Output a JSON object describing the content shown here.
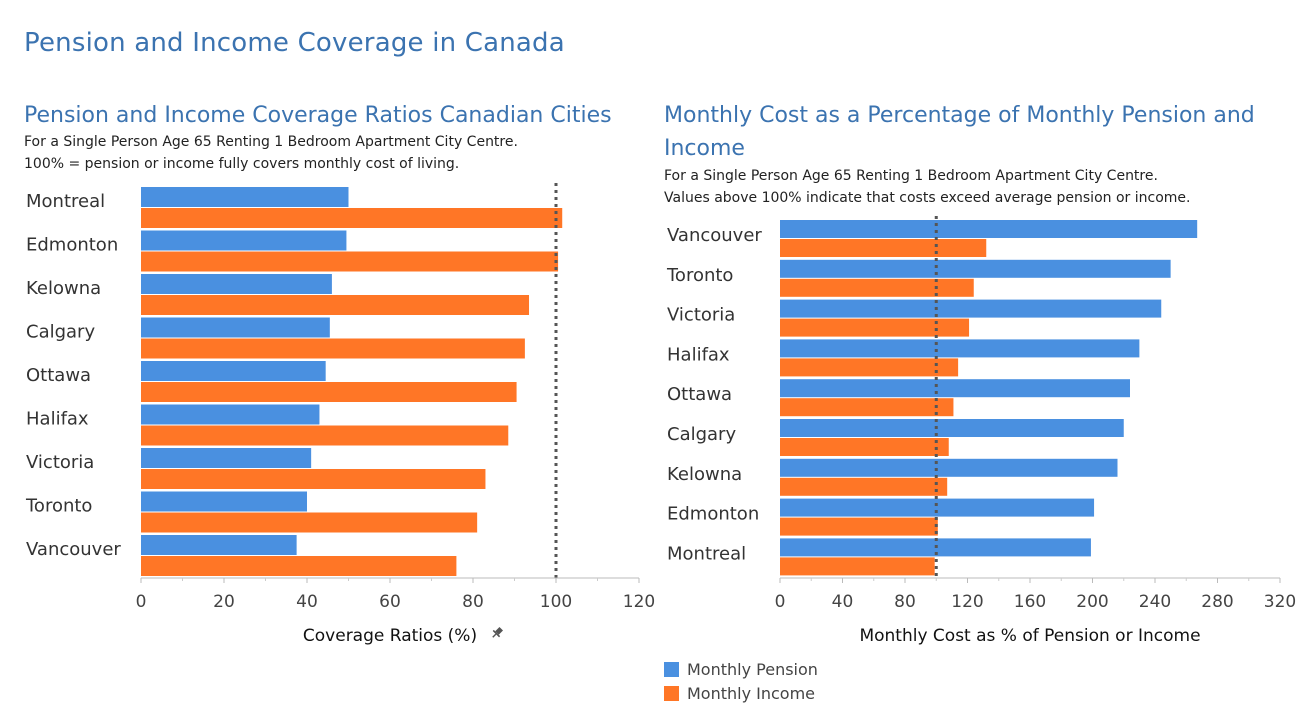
{
  "dashboard_title": "Pension and Income Coverage in Canada",
  "colors": {
    "pension": "#4a90e0",
    "income": "#ff7626",
    "title": "#3b73b0",
    "reference_line": "#555555"
  },
  "chart_data": [
    {
      "type": "bar",
      "orientation": "horizontal",
      "title": "Pension and Income Coverage Ratios Canadian Cities",
      "subtitle": [
        "For a Single Person Age 65 Renting 1 Bedroom Apartment City Centre.",
        "100% = pension or income fully covers monthly cost of living."
      ],
      "categories": [
        "Montreal",
        "Edmonton",
        "Kelowna",
        "Calgary",
        "Ottawa",
        "Halifax",
        "Victoria",
        "Toronto",
        "Vancouver"
      ],
      "series": [
        {
          "name": "Monthly Pension",
          "values": [
            50,
            49.5,
            46,
            45.5,
            44.5,
            43,
            41,
            40,
            37.5
          ]
        },
        {
          "name": "Monthly Income",
          "values": [
            101.5,
            100.5,
            93.5,
            92.5,
            90.5,
            88.5,
            83,
            81,
            76
          ]
        }
      ],
      "xlabel": "Coverage Ratios (%)",
      "xlim": [
        0,
        120
      ],
      "xticks": [
        0,
        20,
        40,
        60,
        80,
        100,
        120
      ],
      "reference_line": 100,
      "grid": false
    },
    {
      "type": "bar",
      "orientation": "horizontal",
      "title": "Monthly Cost as a Percentage of Monthly Pension and Income",
      "subtitle": [
        "For a Single Person Age 65 Renting 1 Bedroom Apartment City Centre.",
        "Values above 100% indicate that costs exceed average pension or income."
      ],
      "categories": [
        "Vancouver",
        "Toronto",
        "Victoria",
        "Halifax",
        "Ottawa",
        "Calgary",
        "Kelowna",
        "Edmonton",
        "Montreal"
      ],
      "series": [
        {
          "name": "Monthly Pension",
          "values": [
            267,
            250,
            244,
            230,
            224,
            220,
            216,
            201,
            199
          ]
        },
        {
          "name": "Monthly Income",
          "values": [
            132,
            124,
            121,
            114,
            111,
            108,
            107,
            101,
            99
          ]
        }
      ],
      "xlabel": "Monthly Cost as % of Pension or Income",
      "xlim": [
        0,
        320
      ],
      "xticks": [
        0,
        40,
        80,
        120,
        160,
        200,
        240,
        280,
        320
      ],
      "reference_line": 100,
      "grid": false
    }
  ],
  "legend": {
    "placement": "bottom-right",
    "items": [
      {
        "label": "Monthly Pension",
        "color": "#4a90e0"
      },
      {
        "label": "Monthly Income",
        "color": "#ff7626"
      }
    ]
  },
  "pin_icon": "pin-icon"
}
